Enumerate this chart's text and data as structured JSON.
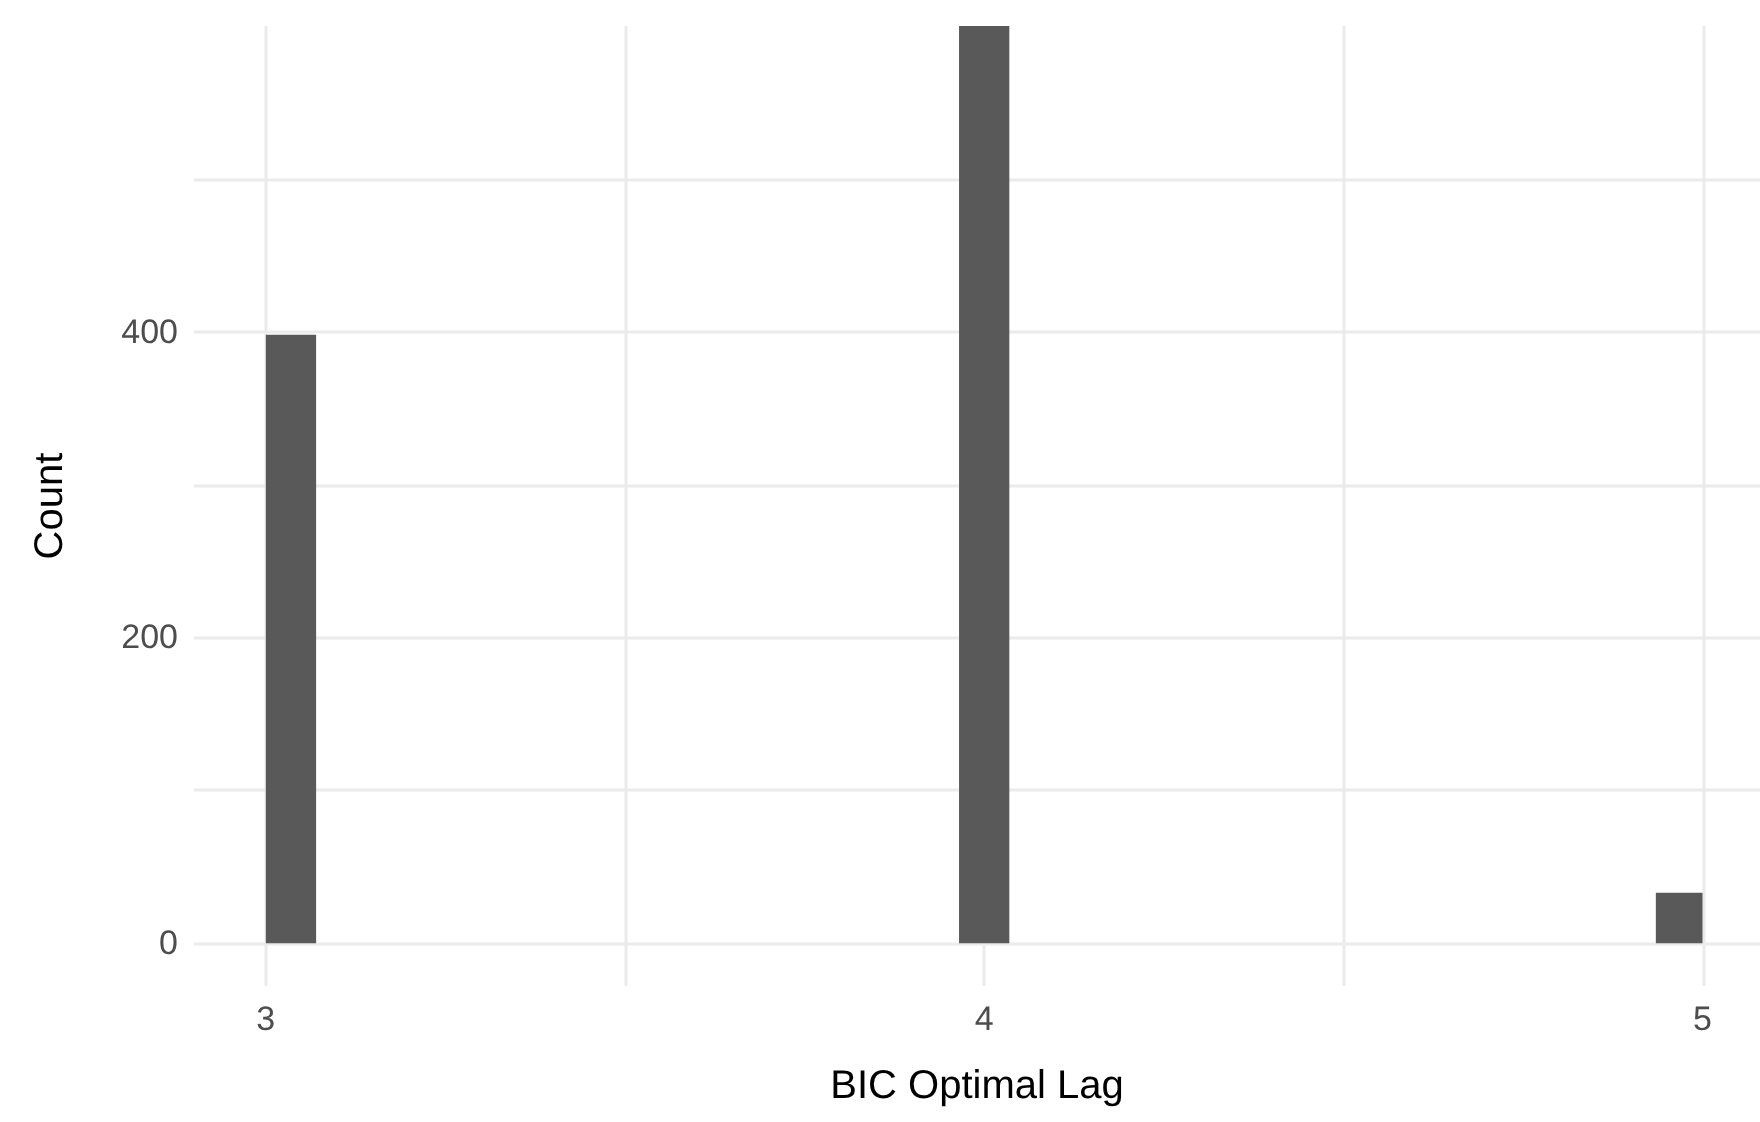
{
  "chart_data": {
    "type": "histogram",
    "xlabel": "BIC Optimal Lag",
    "ylabel": "Count",
    "bins": [
      3,
      3.07,
      3.965,
      4.035,
      4.935,
      5
    ],
    "values": [
      398,
      0,
      600,
      0,
      33
    ],
    "color": "#595959",
    "xlim": [
      2.9,
      5.08
    ],
    "xticks": [
      3,
      {
        "value": 3.5,
        "label": null
      },
      4,
      {
        "value": 4.5,
        "label": null
      },
      5
    ],
    "ylim": [
      -28,
      600
    ],
    "yticks": [
      0,
      {
        "value": 100,
        "label": null
      },
      200,
      {
        "value": 300,
        "label": null
      },
      400,
      {
        "value": 500,
        "label": null
      }
    ],
    "grid": true
  }
}
